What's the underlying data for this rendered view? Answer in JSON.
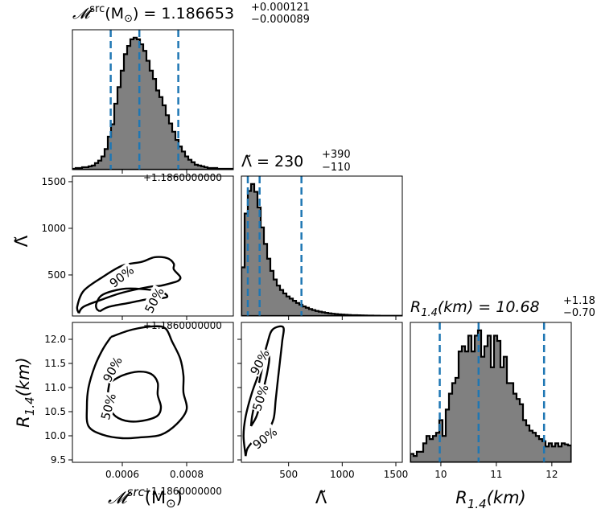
{
  "chart_data": {
    "type": "corner",
    "parameters": [
      "mchirp_src",
      "lambda_tilde",
      "R14"
    ],
    "titles": {
      "mchirp": {
        "prefix": "𝓜",
        "sup": "src",
        "mid": "(M",
        "sun": "⊙",
        "close": ") = 1.186653",
        "upper": "+0.000121",
        "lower": "−0.000089"
      },
      "lambda": {
        "prefix": "Λ̃ = 230",
        "upper": "+390",
        "lower": "−110"
      },
      "r14": {
        "prefix": "R",
        "sub": "1.4",
        "mid": "(km) = 10.68",
        "upper": "+1.18",
        "lower": "−0.70"
      }
    },
    "axis_labels": {
      "mchirp": {
        "prefix": "𝓜",
        "sup": "src",
        "mid": "(M",
        "sun": "⊙",
        "close": ")"
      },
      "lambda": "Λ̃",
      "r14": {
        "prefix": "R",
        "sub": "1.4",
        "mid": "(km)"
      }
    },
    "offset_text": "+1.1860000000",
    "ticks": {
      "mchirp_offset": [
        0.0006,
        0.0008
      ],
      "mchirp_labels": [
        "0.0006",
        "0.0008"
      ],
      "lambda": [
        500,
        1000,
        1500
      ],
      "lambda_labels": [
        "500",
        "1000",
        "1500"
      ],
      "lambda_y_labels": [
        "500",
        "1000",
        "1500"
      ],
      "r14": [
        10,
        11,
        12
      ],
      "r14_labels": [
        "10",
        "11",
        "12"
      ],
      "r14_y": [
        9.5,
        10.0,
        10.5,
        11.0,
        11.5,
        12.0
      ],
      "r14_y_labels": [
        "9.5",
        "10.0",
        "10.5",
        "11.0",
        "11.5",
        "12.0"
      ]
    },
    "ranges": {
      "mchirp_offset": [
        0.000445,
        0.000945
      ],
      "lambda": [
        60,
        1560
      ],
      "r14": [
        9.45,
        12.35
      ]
    },
    "quantiles": {
      "mchirp_offset": [
        0.000564,
        0.000653,
        0.000774
      ],
      "lambda": [
        120,
        230,
        620
      ],
      "r14": [
        9.98,
        10.68,
        11.86
      ]
    },
    "histograms": {
      "mchirp_offset": {
        "bins": [
          0.000445,
          0.000455,
          0.000465,
          0.000475,
          0.000485,
          0.000495,
          0.000505,
          0.000515,
          0.000525,
          0.000535,
          0.000545,
          0.000555,
          0.000565,
          0.000575,
          0.000585,
          0.000595,
          0.000605,
          0.000615,
          0.000625,
          0.000635,
          0.000645,
          0.000655,
          0.000665,
          0.000675,
          0.000685,
          0.000695,
          0.000705,
          0.000715,
          0.000725,
          0.000735,
          0.000745,
          0.000755,
          0.000765,
          0.000775,
          0.000785,
          0.000795,
          0.000805,
          0.000815,
          0.000825,
          0.000835,
          0.000845,
          0.000855,
          0.000865,
          0.000875,
          0.000885,
          0.000895,
          0.000905,
          0.000915,
          0.000925,
          0.000935,
          0.000945
        ],
        "counts": [
          1,
          2,
          2,
          3,
          3,
          4,
          5,
          8,
          11,
          16,
          25,
          40,
          55,
          80,
          100,
          120,
          140,
          150,
          158,
          160,
          158,
          152,
          144,
          132,
          120,
          110,
          96,
          88,
          78,
          66,
          56,
          46,
          36,
          28,
          22,
          16,
          12,
          9,
          6,
          5,
          4,
          3,
          2,
          2,
          2,
          1,
          1,
          1,
          1,
          1
        ]
      },
      "lambda": {
        "bins": [
          60,
          90,
          120,
          150,
          180,
          210,
          240,
          270,
          300,
          330,
          360,
          390,
          420,
          450,
          480,
          510,
          540,
          570,
          600,
          630,
          660,
          690,
          720,
          750,
          780,
          810,
          840,
          870,
          900,
          930,
          960,
          990,
          1020,
          1050,
          1080,
          1110,
          1140,
          1170,
          1200,
          1230,
          1260,
          1290,
          1320,
          1350,
          1380,
          1410,
          1440,
          1470,
          1500,
          1530,
          1560
        ],
        "counts": [
          560,
          1180,
          1440,
          1520,
          1430,
          1250,
          1020,
          830,
          660,
          520,
          420,
          350,
          300,
          260,
          225,
          200,
          175,
          150,
          130,
          110,
          95,
          80,
          68,
          58,
          50,
          43,
          36,
          30,
          26,
          22,
          19,
          16,
          14,
          12,
          10,
          9,
          8,
          7,
          6,
          5,
          5,
          4,
          4,
          3,
          3,
          3,
          2,
          2,
          2,
          2
        ]
      },
      "r14": {
        "bins": [
          9.45,
          9.508,
          9.566,
          9.624,
          9.682,
          9.74,
          9.798,
          9.856,
          9.914,
          9.972,
          10.03,
          10.088,
          10.146,
          10.204,
          10.262,
          10.32,
          10.378,
          10.436,
          10.494,
          10.552,
          10.61,
          10.668,
          10.726,
          10.784,
          10.842,
          10.9,
          10.958,
          11.016,
          11.074,
          11.132,
          11.19,
          11.248,
          11.306,
          11.364,
          11.422,
          11.48,
          11.538,
          11.596,
          11.654,
          11.712,
          11.77,
          11.828,
          11.886,
          11.944,
          12.002,
          12.06,
          12.118,
          12.176,
          12.234,
          12.292,
          12.35
        ],
        "counts": [
          8,
          6,
          10,
          10,
          18,
          25,
          22,
          25,
          28,
          40,
          25,
          50,
          65,
          75,
          80,
          105,
          110,
          105,
          120,
          105,
          120,
          125,
          100,
          110,
          120,
          90,
          120,
          115,
          90,
          100,
          75,
          75,
          65,
          60,
          55,
          40,
          35,
          30,
          28,
          25,
          22,
          20,
          15,
          18,
          15,
          18,
          15,
          18,
          17,
          16
        ]
      }
    },
    "contour_levels": [
      "50%",
      "90%"
    ],
    "contours": {
      "mchirp_lambda": {
        "c90": [
          [
            0.000465,
            90
          ],
          [
            0.00048,
            160
          ],
          [
            0.00054,
            240
          ],
          [
            0.0006,
            310
          ],
          [
            0.00068,
            370
          ],
          [
            0.00072,
            385
          ],
          [
            0.00076,
            420
          ],
          [
            0.000775,
            440
          ],
          [
            0.00078,
            480
          ],
          [
            0.00076,
            560
          ],
          [
            0.00076,
            620
          ],
          [
            0.00074,
            680
          ],
          [
            0.0007,
            690
          ],
          [
            0.00066,
            640
          ],
          [
            0.0006,
            600
          ],
          [
            0.00054,
            480
          ],
          [
            0.00048,
            330
          ],
          [
            0.00046,
            160
          ],
          [
            0.000465,
            90
          ]
        ],
        "c50": [
          [
            0.00053,
            110
          ],
          [
            0.00056,
            160
          ],
          [
            0.00062,
            200
          ],
          [
            0.00068,
            240
          ],
          [
            0.00072,
            250
          ],
          [
            0.00074,
            270
          ],
          [
            0.00072,
            320
          ],
          [
            0.00066,
            350
          ],
          [
            0.0006,
            350
          ],
          [
            0.00054,
            290
          ],
          [
            0.00052,
            200
          ],
          [
            0.00052,
            140
          ],
          [
            0.00053,
            110
          ]
        ]
      },
      "mchirp_r14": {
        "c90": [
          [
            0.000565,
            12.05
          ],
          [
            0.00063,
            12.2
          ],
          [
            0.0007,
            12.27
          ],
          [
            0.000735,
            12.22
          ],
          [
            0.000755,
            11.95
          ],
          [
            0.00078,
            11.6
          ],
          [
            0.00079,
            11.25
          ],
          [
            0.00079,
            10.9
          ],
          [
            0.0008,
            10.55
          ],
          [
            0.00077,
            10.25
          ],
          [
            0.00072,
            10.02
          ],
          [
            0.00066,
            9.97
          ],
          [
            0.0006,
            9.95
          ],
          [
            0.00054,
            10.02
          ],
          [
            0.000495,
            10.2
          ],
          [
            0.00049,
            10.6
          ],
          [
            0.000495,
            11.0
          ],
          [
            0.000515,
            11.45
          ],
          [
            0.00054,
            11.8
          ],
          [
            0.000565,
            12.05
          ]
        ],
        "c50": [
          [
            0.00056,
            11.1
          ],
          [
            0.0006,
            11.25
          ],
          [
            0.00065,
            11.33
          ],
          [
            0.00069,
            11.28
          ],
          [
            0.00071,
            11.1
          ],
          [
            0.00071,
            10.85
          ],
          [
            0.00072,
            10.6
          ],
          [
            0.00071,
            10.42
          ],
          [
            0.00067,
            10.32
          ],
          [
            0.00062,
            10.3
          ],
          [
            0.00058,
            10.4
          ],
          [
            0.00056,
            10.6
          ],
          [
            0.000555,
            10.85
          ],
          [
            0.00056,
            11.1
          ]
        ]
      },
      "lambda_r14": {
        "c90": [
          [
            100,
            9.58
          ],
          [
            120,
            9.75
          ],
          [
            200,
            9.95
          ],
          [
            300,
            10.1
          ],
          [
            360,
            10.35
          ],
          [
            380,
            10.75
          ],
          [
            400,
            11.15
          ],
          [
            420,
            11.55
          ],
          [
            440,
            11.95
          ],
          [
            450,
            12.25
          ],
          [
            350,
            12.2
          ],
          [
            300,
            11.9
          ],
          [
            240,
            11.4
          ],
          [
            160,
            10.9
          ],
          [
            100,
            10.4
          ],
          [
            80,
            10.0
          ],
          [
            100,
            9.58
          ]
        ],
        "c50": [
          [
            150,
            10.2
          ],
          [
            200,
            10.4
          ],
          [
            240,
            10.7
          ],
          [
            270,
            11.0
          ],
          [
            300,
            11.3
          ],
          [
            320,
            11.6
          ],
          [
            300,
            11.75
          ],
          [
            270,
            11.55
          ],
          [
            230,
            11.15
          ],
          [
            190,
            10.75
          ],
          [
            160,
            10.4
          ],
          [
            150,
            10.2
          ]
        ]
      }
    },
    "contour_labels": {
      "mchirp_lambda_90": "90%",
      "mchirp_lambda_50": "50%",
      "mchirp_r14_90": "90%",
      "mchirp_r14_50": "50%",
      "lambda_r14_90_top": "90%",
      "lambda_r14_50": "50%",
      "lambda_r14_90_bottom": "90%"
    },
    "colors": {
      "hist_fill": "#808080",
      "quantile_line": "#1f77b4",
      "contour": "#000000"
    }
  }
}
